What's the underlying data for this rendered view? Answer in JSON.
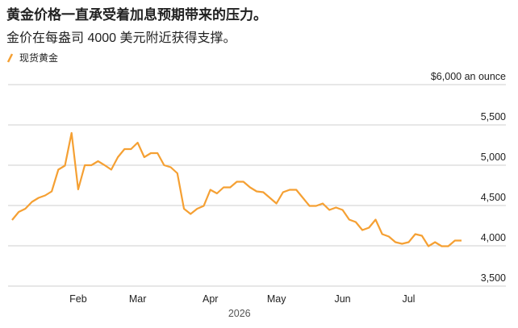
{
  "chart_data": {
    "type": "line",
    "title": "黄金价格一直承受着加息预期带来的压力。",
    "subtitle": "金价在每盎司 4000 美元附近获得支撑。",
    "xlabel": "2026",
    "categories": [
      null,
      null,
      null,
      null,
      null,
      null,
      null,
      null,
      null,
      null,
      "Feb",
      null,
      null,
      null,
      null,
      null,
      null,
      null,
      null,
      "Mar",
      null,
      null,
      null,
      null,
      null,
      null,
      null,
      null,
      null,
      null,
      "Apr",
      null,
      null,
      null,
      null,
      null,
      null,
      null,
      null,
      null,
      "May",
      null,
      null,
      null,
      null,
      null,
      null,
      null,
      null,
      null,
      "Jun",
      null,
      null,
      null,
      null,
      null,
      null,
      null,
      null,
      null,
      "Jul",
      null,
      null,
      null,
      null,
      null,
      null,
      null,
      null
    ],
    "series": [
      {
        "name": "现货黄金",
        "color": "#f5a033",
        "values": [
          4320,
          4420,
          4460,
          4545,
          4595,
          4625,
          4675,
          4945,
          4995,
          5400,
          4700,
          5000,
          5000,
          5050,
          5000,
          4945,
          5100,
          5200,
          5200,
          5280,
          5100,
          5150,
          5150,
          5000,
          4975,
          4900,
          4460,
          4395,
          4460,
          4495,
          4695,
          4650,
          4725,
          4725,
          4795,
          4795,
          4725,
          4675,
          4665,
          4595,
          4525,
          4665,
          4695,
          4695,
          4595,
          4495,
          4495,
          4525,
          4445,
          4475,
          4445,
          4325,
          4295,
          4195,
          4225,
          4325,
          4145,
          4115,
          4045,
          4025,
          4045,
          4145,
          4125,
          3995,
          4045,
          3995,
          3995,
          4065,
          4065
        ]
      }
    ],
    "ylim": [
      3500,
      6000
    ],
    "yticks": [
      {
        "value": 3500,
        "label": "3,500"
      },
      {
        "value": 4000,
        "label": "4,000"
      },
      {
        "value": 4500,
        "label": "4,500"
      },
      {
        "value": 5000,
        "label": "5,000"
      },
      {
        "value": 5500,
        "label": "5,500"
      },
      {
        "value": 6000,
        "label": "$6,000 an ounce"
      }
    ],
    "grid": true,
    "legend": "top-left"
  }
}
